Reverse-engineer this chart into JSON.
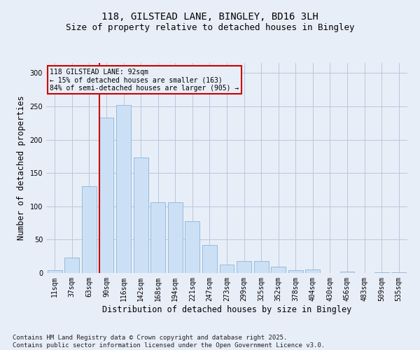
{
  "title_line1": "118, GILSTEAD LANE, BINGLEY, BD16 3LH",
  "title_line2": "Size of property relative to detached houses in Bingley",
  "xlabel": "Distribution of detached houses by size in Bingley",
  "ylabel": "Number of detached properties",
  "categories": [
    "11sqm",
    "37sqm",
    "63sqm",
    "90sqm",
    "116sqm",
    "142sqm",
    "168sqm",
    "194sqm",
    "221sqm",
    "247sqm",
    "273sqm",
    "299sqm",
    "325sqm",
    "352sqm",
    "378sqm",
    "404sqm",
    "430sqm",
    "456sqm",
    "483sqm",
    "509sqm",
    "535sqm"
  ],
  "values": [
    4,
    23,
    130,
    233,
    252,
    173,
    106,
    106,
    78,
    42,
    13,
    18,
    18,
    9,
    4,
    5,
    0,
    2,
    0,
    1,
    1
  ],
  "bar_color": "#cce0f5",
  "bar_edge_color": "#8ab4d8",
  "grid_color": "#b8c8dc",
  "background_color": "#e8eef8",
  "vline_color": "#cc0000",
  "annotation_text": "118 GILSTEAD LANE: 92sqm\n← 15% of detached houses are smaller (163)\n84% of semi-detached houses are larger (905) →",
  "annotation_box_color": "#cc0000",
  "footnote": "Contains HM Land Registry data © Crown copyright and database right 2025.\nContains public sector information licensed under the Open Government Licence v3.0.",
  "ylim": [
    0,
    315
  ],
  "yticks": [
    0,
    50,
    100,
    150,
    200,
    250,
    300
  ],
  "title_fontsize": 10,
  "subtitle_fontsize": 9,
  "tick_fontsize": 7,
  "label_fontsize": 8.5,
  "footnote_fontsize": 6.5
}
